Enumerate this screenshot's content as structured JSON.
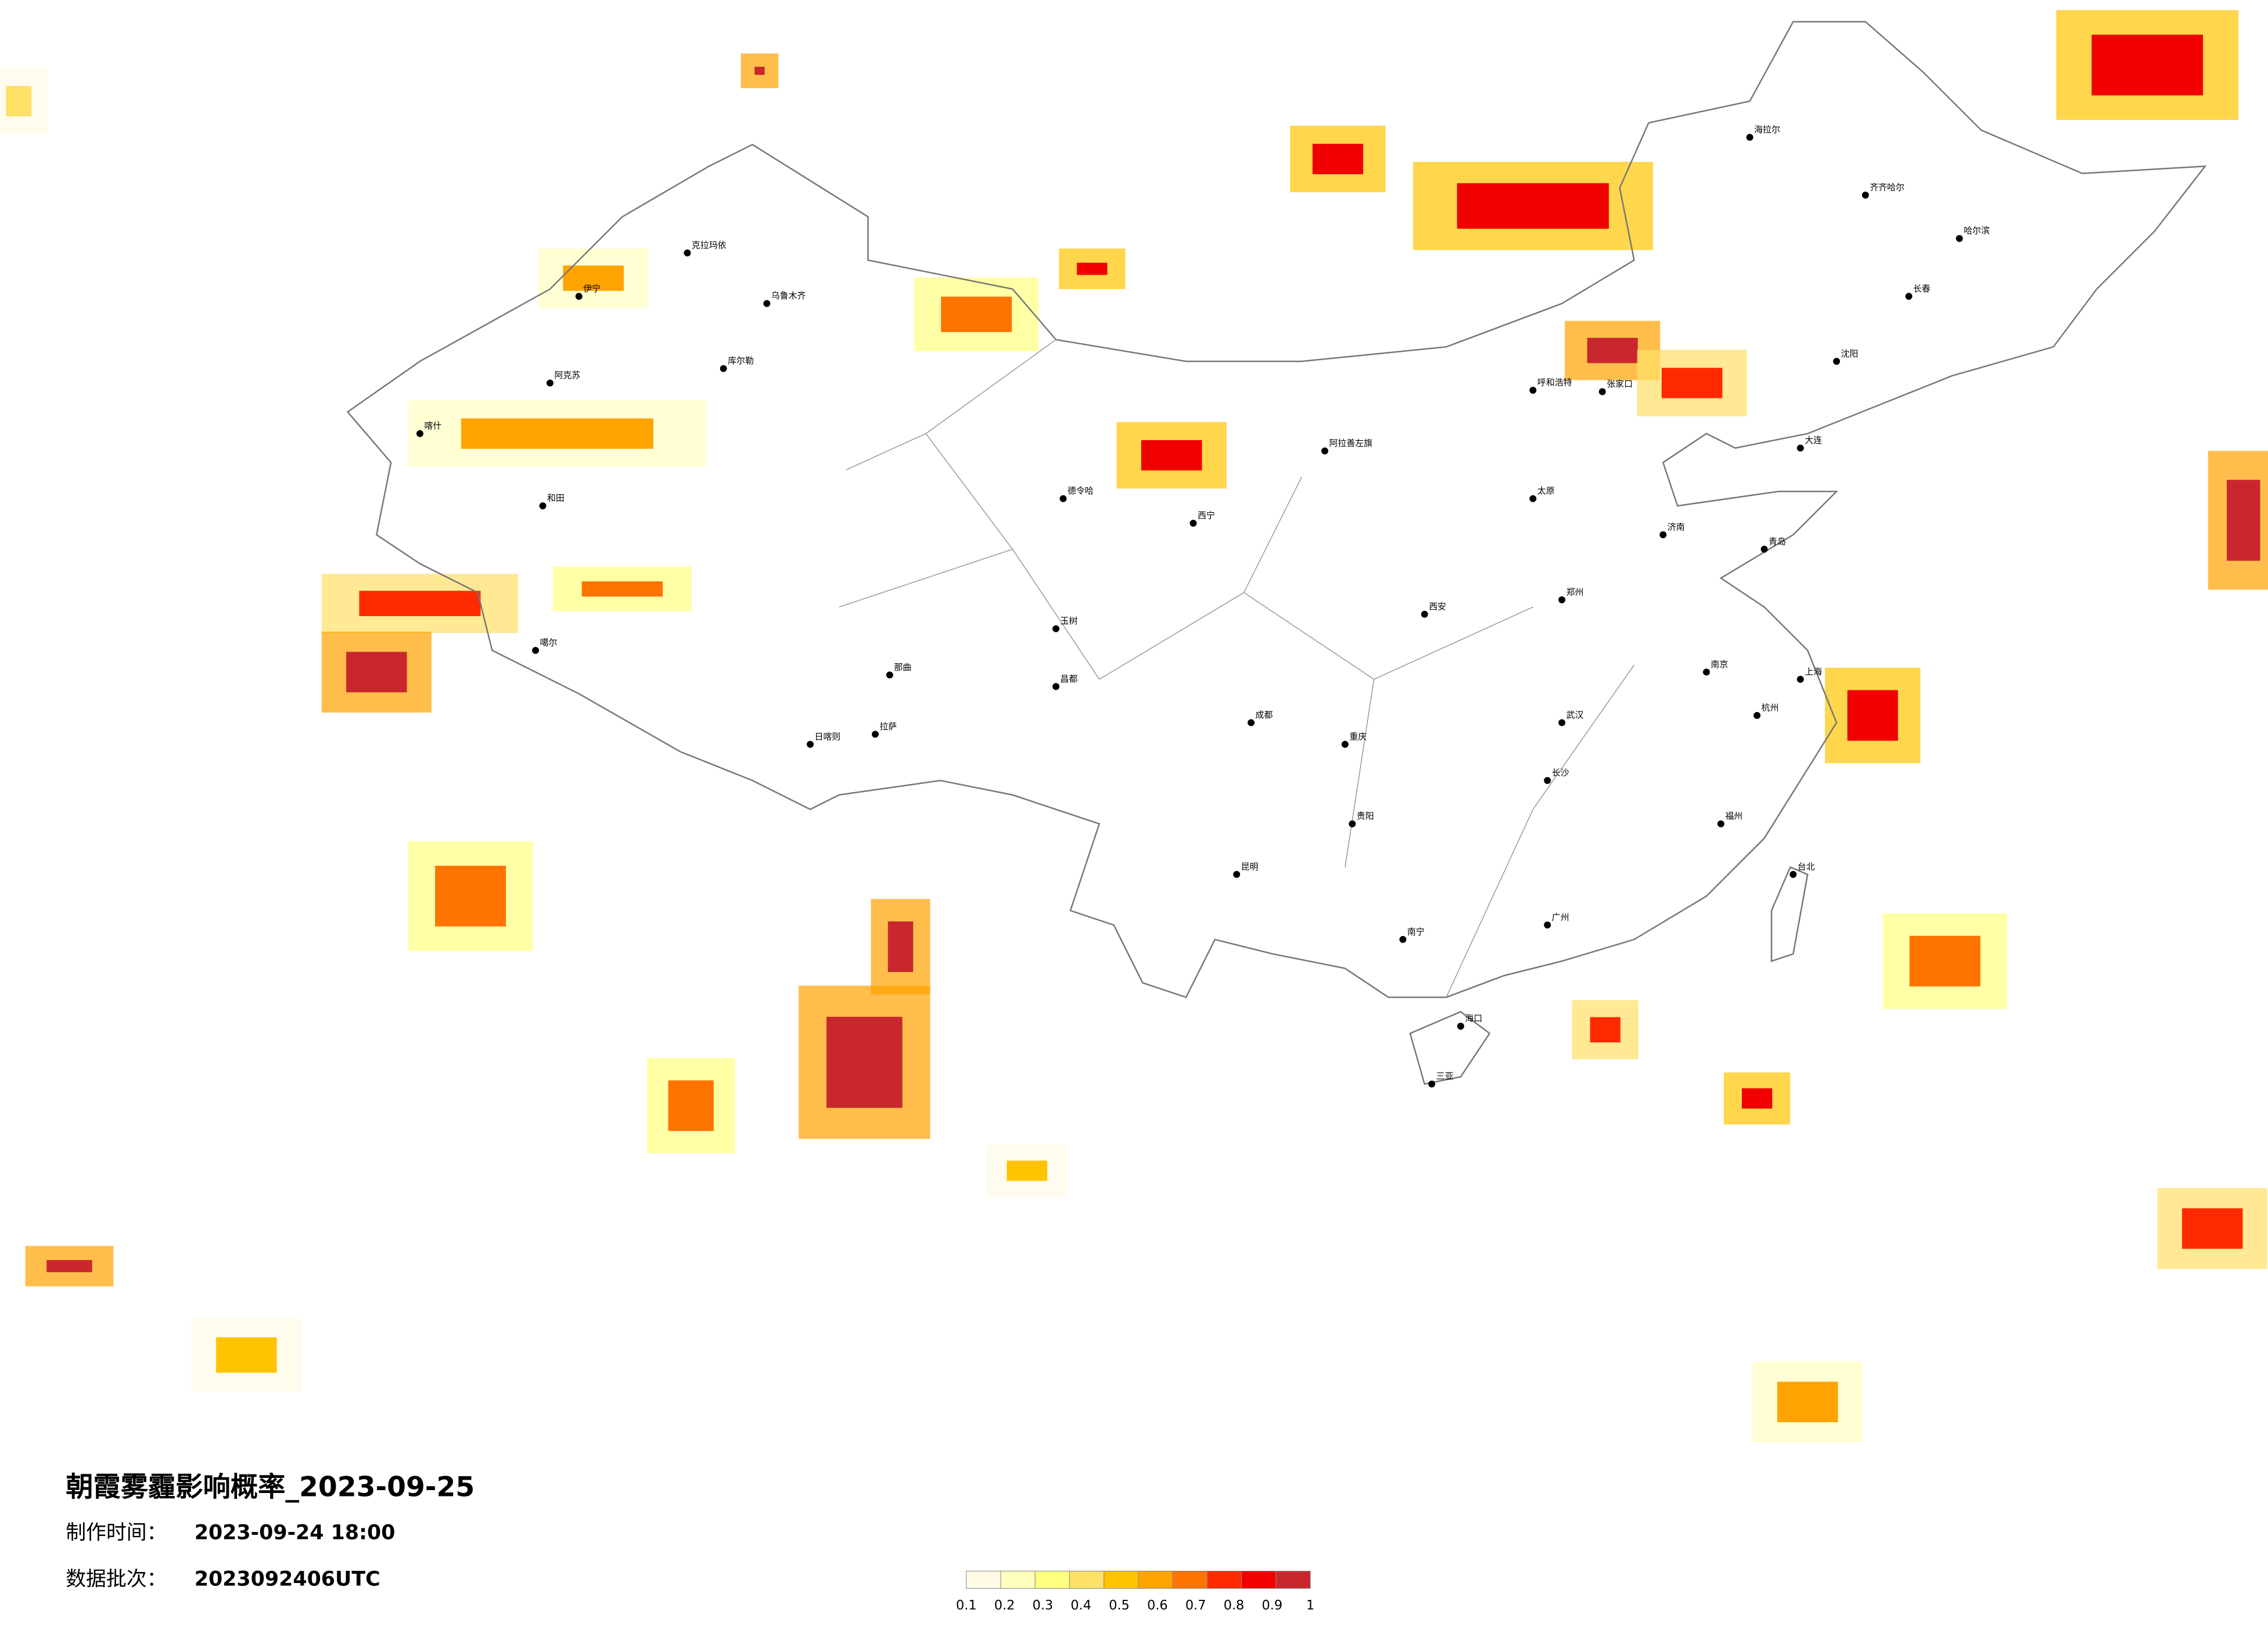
{
  "title": "朝霞雾霾影响概率_2023-09-25",
  "info": [
    {
      "label": "制作时间：",
      "value": "2023-09-24 18:00"
    },
    {
      "label": "数据批次：",
      "value": "2023092406UTC"
    }
  ],
  "legend": {
    "colors": [
      "#fffbe6",
      "#ffffc0",
      "#ffff80",
      "#ffe066",
      "#ffc400",
      "#ffa300",
      "#ff7300",
      "#ff2a00",
      "#f00000",
      "#c8282d"
    ],
    "ticks": [
      0.1,
      0.2,
      0.3,
      0.4,
      0.5,
      0.6,
      0.7,
      0.8,
      0.9,
      1
    ]
  },
  "cities": [
    "海拉尔",
    "齐齐哈尔",
    "哈尔滨",
    "长春",
    "沈阳",
    "大连",
    "张家口",
    "呼和浩特",
    "阿拉善左旗",
    "西宁",
    "拉萨",
    "日喀则",
    "乌鲁木齐",
    "喀什",
    "和田",
    "克拉玛依",
    "伊宁",
    "库尔勒",
    "阿克苏",
    "噶尔",
    "那曲",
    "昌都",
    "玉树",
    "德令哈",
    "成都",
    "重庆",
    "贵阳",
    "昆明",
    "南宁",
    "广州",
    "福州",
    "台北",
    "上海",
    "杭州",
    "南京",
    "武汉",
    "长沙",
    "郑州",
    "西安",
    "太原",
    "济南",
    "青岛",
    "海口",
    "三亚"
  ]
}
